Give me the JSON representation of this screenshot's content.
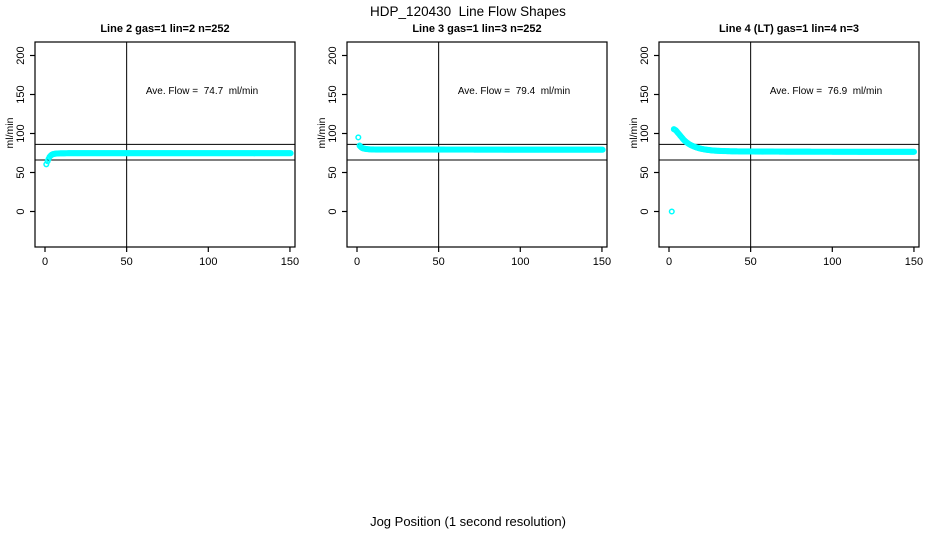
{
  "header": {
    "title": "HDP_120430  Line Flow Shapes"
  },
  "footer": {
    "xlabel": "Jog Position (1 second resolution)"
  },
  "colors": {
    "marker": "#00FFFF",
    "axis": "#000000",
    "background": "#FFFFFF"
  },
  "chart_data": [
    {
      "type": "scatter",
      "title": "Line 2 gas=1 lin=2 n=252",
      "ylabel": "ml/min",
      "annotation": "Ave. Flow =  74.7  ml/min",
      "ave_flow_ml_min": 74.7,
      "n_points": 252,
      "xticks": [
        0,
        50,
        100,
        150
      ],
      "yticks": [
        0,
        50,
        100,
        150,
        200
      ],
      "xlim": [
        -3,
        153
      ],
      "ylim": [
        -46,
        218
      ],
      "vline_x": 50,
      "ref_lines_y": [
        86,
        66
      ],
      "marker_step": 0.6,
      "x_start": 1.6,
      "x_end": 150.5,
      "profile": [
        [
          1.6,
          64.5
        ],
        [
          2.2,
          67.5
        ],
        [
          2.8,
          70
        ],
        [
          3.6,
          72
        ],
        [
          4.6,
          73.3
        ],
        [
          6,
          74.1
        ],
        [
          8.5,
          74.5
        ],
        [
          14,
          74.7
        ],
        [
          150.5,
          74.7
        ]
      ],
      "outlier_points": [
        [
          0.8,
          60.5
        ]
      ]
    },
    {
      "type": "scatter",
      "title": "Line 3 gas=1 lin=3 n=252",
      "ylabel": "ml/min",
      "annotation": "Ave. Flow =  79.4  ml/min",
      "ave_flow_ml_min": 79.4,
      "n_points": 252,
      "xticks": [
        0,
        50,
        100,
        150
      ],
      "yticks": [
        0,
        50,
        100,
        150,
        200
      ],
      "xlim": [
        -3,
        153
      ],
      "ylim": [
        -46,
        218
      ],
      "vline_x": 50,
      "ref_lines_y": [
        86,
        66
      ],
      "marker_step": 0.6,
      "x_start": 1.6,
      "x_end": 150.5,
      "profile": [
        [
          1.6,
          84.5
        ],
        [
          2.4,
          82.5
        ],
        [
          3.4,
          81.2
        ],
        [
          5,
          80.3
        ],
        [
          7.5,
          79.7
        ],
        [
          12,
          79.4
        ],
        [
          150.5,
          79.2
        ]
      ],
      "outlier_points": [
        [
          0.8,
          95
        ]
      ]
    },
    {
      "type": "scatter",
      "title": "Line 4 (LT) gas=1 lin=4 n=3",
      "ylabel": "ml/min",
      "annotation": "Ave. Flow =  76.9  ml/min",
      "ave_flow_ml_min": 76.9,
      "n_points": 3,
      "xticks": [
        0,
        50,
        100,
        150
      ],
      "yticks": [
        0,
        50,
        100,
        150,
        200
      ],
      "xlim": [
        -3,
        153
      ],
      "ylim": [
        -46,
        218
      ],
      "vline_x": 50,
      "ref_lines_y": [
        86,
        66
      ],
      "marker_step": 0.6,
      "x_start": 3,
      "x_end": 150.5,
      "profile": [
        [
          3,
          105.5
        ],
        [
          3.6,
          104.8
        ],
        [
          4.2,
          104
        ],
        [
          5,
          102
        ],
        [
          6,
          99.5
        ],
        [
          7,
          97
        ],
        [
          8,
          94.5
        ],
        [
          9,
          92
        ],
        [
          10,
          90
        ],
        [
          11,
          88.3
        ],
        [
          12,
          86.8
        ],
        [
          13,
          85.5
        ],
        [
          14.5,
          84
        ],
        [
          16,
          82.7
        ],
        [
          18,
          81.3
        ],
        [
          20,
          80.3
        ],
        [
          22,
          79.5
        ],
        [
          25,
          78.6
        ],
        [
          28,
          78
        ],
        [
          32,
          77.6
        ],
        [
          38,
          77.2
        ],
        [
          45,
          77
        ],
        [
          60,
          76.8
        ],
        [
          90,
          76.6
        ],
        [
          150.5,
          76.5
        ]
      ],
      "outlier_points": [
        [
          1.7,
          0
        ]
      ]
    }
  ]
}
